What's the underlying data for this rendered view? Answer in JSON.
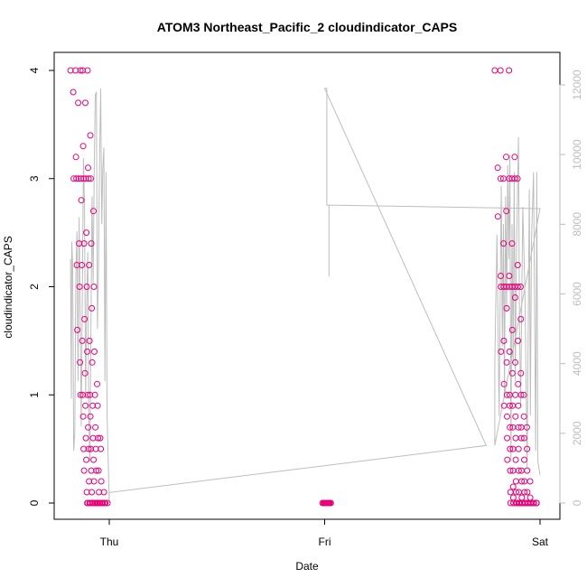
{
  "chart_data": {
    "type": "scatter",
    "title": "ATOM3 Northeast_Pacific_2 cloudindicator_CAPS",
    "xlabel": "Date",
    "ylabel": "cloudindicator_CAPS",
    "x_ticks": [
      "Thu",
      "Fri",
      "Sat"
    ],
    "x_domain_days": [
      -0.21,
      2.0
    ],
    "y_left": {
      "ylim": [
        0,
        4
      ],
      "ticks": [
        "0",
        "1",
        "2",
        "3",
        "4"
      ]
    },
    "y_right": {
      "ylim": [
        0,
        12000
      ],
      "ticks": [
        "0",
        "2000",
        "4000",
        "6000",
        "8000",
        "10000",
        "12000"
      ]
    },
    "grid": false,
    "colors": {
      "points": "#e8007a",
      "secondary_line": "#bdbdbd",
      "axis": "#000000",
      "right_axis": "#bdbdbd"
    },
    "series": [
      {
        "kind": "points",
        "clusters": [
          {
            "x_range": [
              -0.18,
              0.0
            ],
            "values": [
              4.0,
              4.0,
              4.0,
              4.0,
              4.0,
              3.8,
              3.7,
              3.7,
              3.4,
              3.3,
              3.2,
              3.1,
              3.0,
              3.0,
              3.0,
              3.0,
              3.0,
              3.0,
              3.0,
              3.0,
              2.8,
              2.7,
              2.5,
              2.4,
              2.4,
              2.4,
              2.2,
              2.2,
              2.2,
              2.0,
              2.0,
              2.0,
              1.8,
              1.7,
              1.6,
              1.5,
              1.5,
              1.4,
              1.4,
              1.3,
              1.3,
              1.2,
              1.1,
              1.0,
              1.0,
              1.0,
              1.0,
              1.0,
              0.9,
              0.9,
              0.9,
              0.8,
              0.8,
              0.7,
              0.7,
              0.6,
              0.6,
              0.6,
              0.6,
              0.5,
              0.5,
              0.5,
              0.5,
              0.5,
              0.4,
              0.4,
              0.3,
              0.3,
              0.3,
              0.3,
              0.2,
              0.2,
              0.2,
              0.1,
              0.1,
              0.1,
              0.1,
              0.0,
              0.0,
              0.0,
              0.0,
              0.0,
              0.0,
              0.0,
              0.0,
              0.0,
              0.0,
              0.0,
              0.0,
              0.0,
              0.0,
              0.0,
              0.0,
              0.0,
              0.0,
              0.0,
              0.0,
              0.0,
              0.0,
              0.0,
              0.0,
              0.0
            ]
          },
          {
            "x_range": [
              0.99,
              1.03
            ],
            "values": [
              0,
              0,
              0,
              0,
              0,
              0,
              0,
              0,
              0,
              0,
              0,
              0,
              0,
              0,
              0,
              0,
              0,
              0,
              0,
              0,
              0,
              0,
              0,
              0,
              0,
              0,
              0,
              0,
              0,
              0
            ]
          },
          {
            "x_range": [
              1.79,
              2.0
            ],
            "values": [
              4.0,
              4.0,
              4.0,
              3.2,
              3.2,
              3.1,
              3.0,
              3.0,
              3.0,
              3.0,
              3.0,
              3.0,
              2.7,
              2.65,
              2.4,
              2.4,
              2.2,
              2.1,
              2.1,
              2.0,
              2.0,
              2.0,
              2.0,
              2.0,
              2.0,
              2.0,
              2.0,
              1.9,
              1.8,
              1.7,
              1.6,
              1.5,
              1.5,
              1.4,
              1.4,
              1.3,
              1.3,
              1.2,
              1.2,
              1.1,
              1.1,
              1.0,
              1.0,
              1.0,
              1.0,
              1.0,
              0.9,
              0.9,
              0.9,
              0.9,
              0.8,
              0.8,
              0.8,
              0.7,
              0.7,
              0.7,
              0.7,
              0.7,
              0.6,
              0.6,
              0.6,
              0.6,
              0.5,
              0.5,
              0.5,
              0.5,
              0.4,
              0.4,
              0.4,
              0.3,
              0.3,
              0.3,
              0.3,
              0.3,
              0.2,
              0.2,
              0.2,
              0.2,
              0.15,
              0.1,
              0.1,
              0.1,
              0.1,
              0.1,
              0.05,
              0.05,
              0.05,
              0.0,
              0.0,
              0.0,
              0.0,
              0.0,
              0.0,
              0.0,
              0.0,
              0.0,
              0.0,
              0.0,
              0.0,
              0.0,
              0.0,
              0.0,
              0.0,
              0.0,
              0.0,
              0.0,
              0.0,
              0.0,
              0.0,
              0.0,
              0.0,
              0.0,
              0.0,
              0.0,
              0.0,
              0.0,
              0.0,
              0.0,
              0.0,
              0.0,
              0.0,
              0.0,
              0.0,
              0.0,
              0.0,
              0.0,
              0.0,
              0.0,
              0.0,
              0.0
            ]
          }
        ]
      },
      {
        "kind": "line",
        "axis": "right",
        "path": [
          [
            -0.18,
            7000
          ],
          [
            -0.178,
            5000
          ],
          [
            -0.176,
            3000
          ],
          [
            -0.174,
            7500
          ],
          [
            -0.17,
            6800
          ],
          [
            -0.165,
            1500
          ],
          [
            -0.16,
            2000
          ],
          [
            -0.155,
            6500
          ],
          [
            -0.15,
            7800
          ],
          [
            -0.145,
            3500
          ],
          [
            -0.14,
            8200
          ],
          [
            -0.135,
            5500
          ],
          [
            -0.13,
            2200
          ],
          [
            -0.125,
            6000
          ],
          [
            -0.12,
            9900
          ],
          [
            -0.115,
            8500
          ],
          [
            -0.11,
            3000
          ],
          [
            -0.105,
            5800
          ],
          [
            -0.1,
            7200
          ],
          [
            -0.095,
            2500
          ],
          [
            -0.09,
            1200
          ],
          [
            -0.085,
            5000
          ],
          [
            -0.08,
            8800
          ],
          [
            -0.075,
            6300
          ],
          [
            -0.07,
            9500
          ],
          [
            -0.065,
            11700
          ],
          [
            -0.06,
            11800
          ],
          [
            -0.055,
            5000
          ],
          [
            -0.05,
            6900
          ],
          [
            -0.045,
            9900
          ],
          [
            -0.04,
            11900
          ],
          [
            -0.035,
            8000
          ],
          [
            -0.03,
            9600
          ],
          [
            -0.025,
            10200
          ],
          [
            -0.02,
            3500
          ],
          [
            -0.015,
            9500
          ],
          [
            -0.01,
            2500
          ],
          [
            0.0,
            0
          ],
          [
            0.0,
            300
          ],
          [
            1.75,
            1650
          ],
          [
            1.0,
            11900
          ],
          [
            1.01,
            11900
          ],
          [
            1.01,
            8550
          ],
          [
            1.02,
            8550
          ],
          [
            1.02,
            8250
          ],
          [
            1.02,
            6500
          ],
          [
            1.02,
            8550
          ],
          [
            2.0,
            8450
          ],
          [
            1.79,
            1650
          ],
          [
            1.79,
            4000
          ],
          [
            1.8,
            7700
          ],
          [
            1.805,
            5000
          ],
          [
            1.81,
            2500
          ],
          [
            1.815,
            6000
          ],
          [
            1.82,
            9100
          ],
          [
            1.825,
            4500
          ],
          [
            1.83,
            8000
          ],
          [
            1.835,
            3000
          ],
          [
            1.84,
            8800
          ],
          [
            1.845,
            5500
          ],
          [
            1.85,
            9700
          ],
          [
            1.855,
            7000
          ],
          [
            1.86,
            10000
          ],
          [
            1.865,
            1200
          ],
          [
            1.87,
            8000
          ],
          [
            1.875,
            4000
          ],
          [
            1.88,
            9500
          ],
          [
            1.885,
            3500
          ],
          [
            1.89,
            7000
          ],
          [
            1.9,
            10500
          ],
          [
            1.905,
            5000
          ],
          [
            1.91,
            2800
          ],
          [
            1.92,
            8500
          ],
          [
            1.93,
            6000
          ],
          [
            1.94,
            1000
          ],
          [
            1.95,
            9000
          ],
          [
            1.955,
            2500
          ],
          [
            1.96,
            7500
          ],
          [
            1.97,
            9500
          ],
          [
            1.98,
            1500
          ],
          [
            1.985,
            9500
          ],
          [
            1.99,
            1200
          ],
          [
            2.0,
            800
          ]
        ]
      }
    ]
  }
}
